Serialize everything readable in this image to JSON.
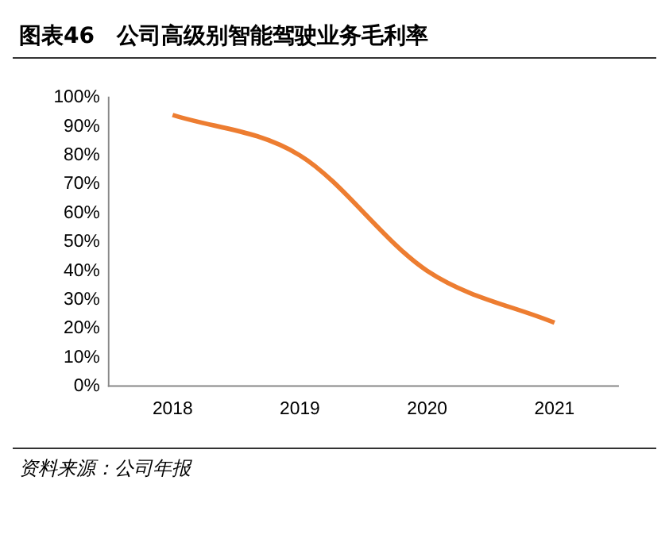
{
  "chart_data": {
    "type": "line",
    "title": "图表46　公司高级别智能驾驶业务毛利率",
    "categories": [
      "2018",
      "2019",
      "2020",
      "2021"
    ],
    "series": [
      {
        "color": "#ed7d31",
        "values": [
          94,
          80,
          40,
          22
        ]
      }
    ],
    "ylim": [
      0,
      100
    ],
    "yticks": [
      {
        "value": 0,
        "label": "0%"
      },
      {
        "value": 10,
        "label": "10%"
      },
      {
        "value": 20,
        "label": "20%"
      },
      {
        "value": 30,
        "label": "30%"
      },
      {
        "value": 40,
        "label": "40%"
      },
      {
        "value": 50,
        "label": "50%"
      },
      {
        "value": 60,
        "label": "60%"
      },
      {
        "value": 70,
        "label": "70%"
      },
      {
        "value": 80,
        "label": "80%"
      },
      {
        "value": 90,
        "label": "90%"
      },
      {
        "value": 100,
        "label": "100%"
      }
    ],
    "grid": false,
    "legend": false,
    "marker": "none",
    "line_style": "solid",
    "annotations": [
      "资料来源：公司年报"
    ]
  }
}
